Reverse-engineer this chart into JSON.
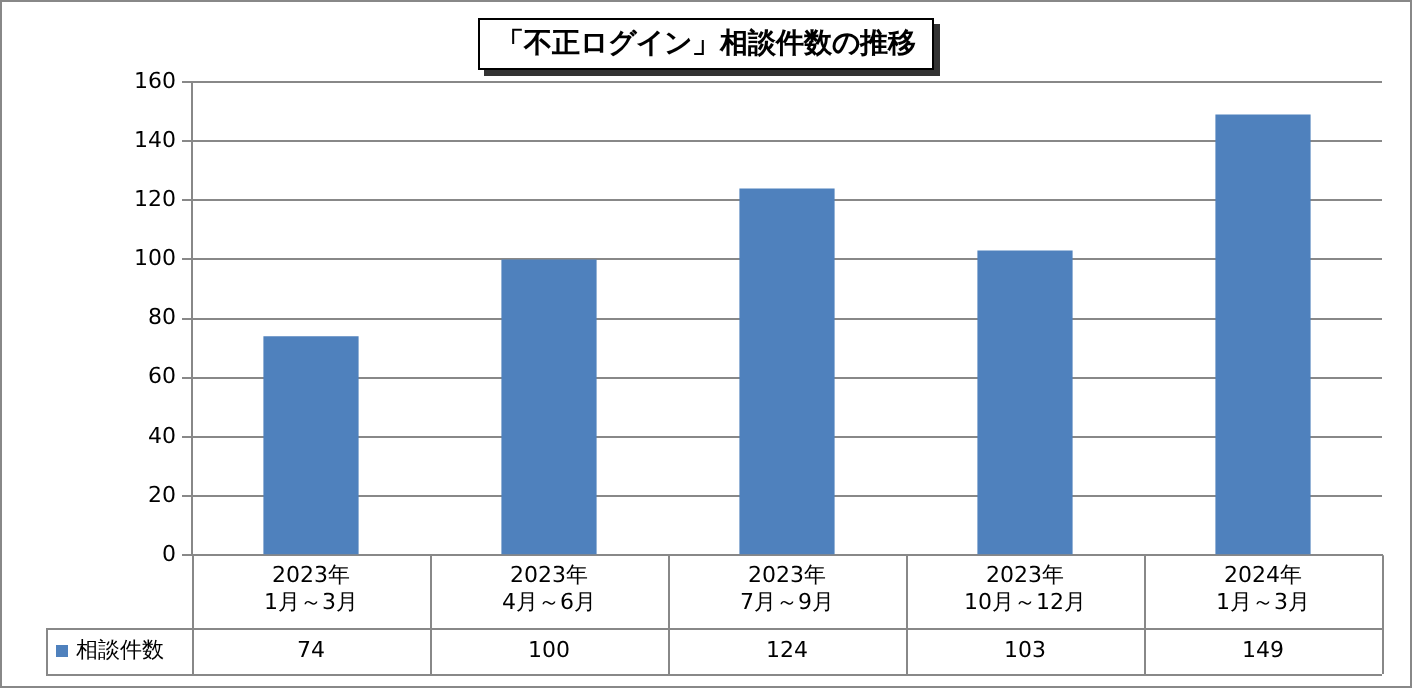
{
  "chart_data": {
    "type": "bar",
    "title": "「不正ログイン」相談件数の推移",
    "categories": [
      "2023年\n1月～3月",
      "2023年\n4月～6月",
      "2023年\n7月～9月",
      "2023年\n10月～12月",
      "2024年\n1月～3月"
    ],
    "series": [
      {
        "name": "相談件数",
        "color": "#4f81bd",
        "values": [
          74,
          100,
          124,
          103,
          149
        ]
      }
    ],
    "ylim": [
      0,
      160
    ],
    "yticks": [
      0,
      20,
      40,
      60,
      80,
      100,
      120,
      140,
      160
    ],
    "grid": "y",
    "legend": "bottom",
    "data_labels": true
  }
}
